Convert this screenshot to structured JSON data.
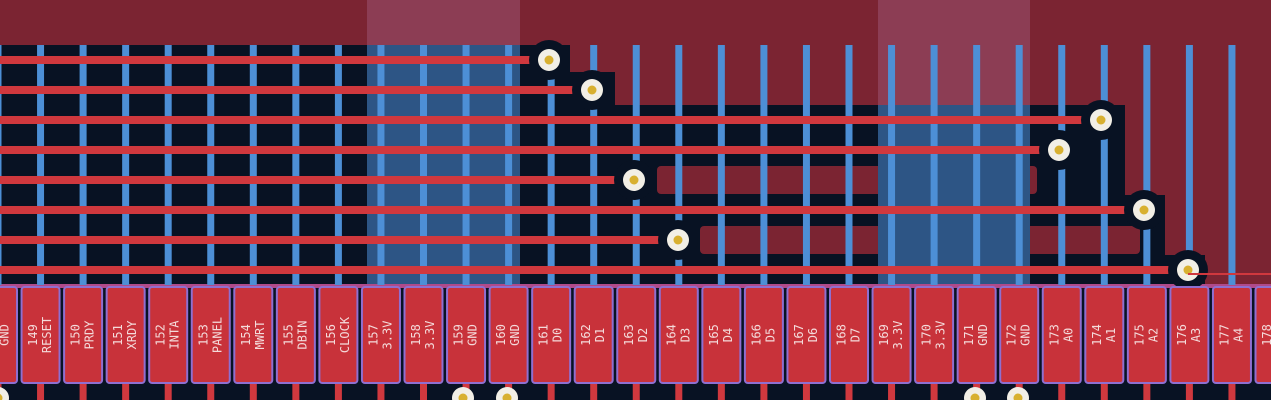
{
  "pads": [
    {
      "name": "GND"
    },
    {
      "number": "149",
      "name": "RESET"
    },
    {
      "number": "150",
      "name": "PRDY"
    },
    {
      "number": "151",
      "name": "XRDY"
    },
    {
      "number": "152",
      "name": "INTA"
    },
    {
      "number": "153",
      "name": "PANEL"
    },
    {
      "number": "154",
      "name": "MWRT"
    },
    {
      "number": "155",
      "name": "DBIN"
    },
    {
      "number": "156",
      "name": "CLOCK"
    },
    {
      "number": "157",
      "name": "3.3V"
    },
    {
      "number": "158",
      "name": "3.3V"
    },
    {
      "number": "159",
      "name": "GND"
    },
    {
      "number": "160",
      "name": "GND"
    },
    {
      "number": "161",
      "name": "D0"
    },
    {
      "number": "162",
      "name": "D1"
    },
    {
      "number": "163",
      "name": "D2"
    },
    {
      "number": "164",
      "name": "D3"
    },
    {
      "number": "165",
      "name": "D4"
    },
    {
      "number": "166",
      "name": "D5"
    },
    {
      "number": "167",
      "name": "D6"
    },
    {
      "number": "168",
      "name": "D7"
    },
    {
      "number": "169",
      "name": "3.3V"
    },
    {
      "number": "170",
      "name": "3.3V"
    },
    {
      "number": "171",
      "name": "GND"
    },
    {
      "number": "172",
      "name": "GND"
    },
    {
      "number": "173",
      "name": "A0"
    },
    {
      "number": "174",
      "name": "A1"
    },
    {
      "number": "175",
      "name": "A2"
    },
    {
      "number": "176",
      "name": "A3"
    },
    {
      "number": "177",
      "name": "A4"
    },
    {
      "number": "178"
    }
  ]
}
